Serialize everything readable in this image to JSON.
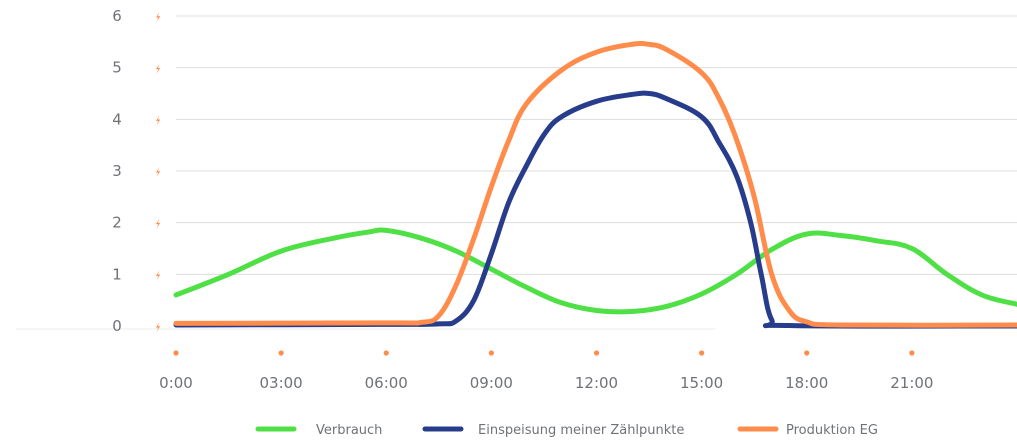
{
  "chart_data": {
    "type": "line",
    "title": "",
    "xlabel": "",
    "ylabel": "",
    "ylim": [
      0,
      6
    ],
    "xlim": [
      0,
      24
    ],
    "grid": true,
    "legend_position": "bottom",
    "y_ticks": [
      "0",
      "1",
      "2",
      "3",
      "4",
      "5",
      "6"
    ],
    "x_ticks": [
      "0:00",
      "03:00",
      "06:00",
      "09:00",
      "12:00",
      "15:00",
      "18:00",
      "21:00"
    ],
    "x_tick_hours": [
      0,
      3,
      6,
      9,
      12,
      15,
      18,
      21
    ],
    "y_marker_color": "#ff8c4b",
    "y_marker_icon": "lightning-bolt-icon",
    "x_marker_icon": "dot-icon",
    "series": [
      {
        "name": "Verbrauch",
        "color": "#4fe046",
        "points": [
          [
            0,
            0.6
          ],
          [
            1.5,
            1.0
          ],
          [
            3,
            1.45
          ],
          [
            4.5,
            1.7
          ],
          [
            5.5,
            1.82
          ],
          [
            6,
            1.85
          ],
          [
            7,
            1.7
          ],
          [
            8,
            1.45
          ],
          [
            9,
            1.1
          ],
          [
            10,
            0.75
          ],
          [
            11,
            0.45
          ],
          [
            12,
            0.3
          ],
          [
            13,
            0.28
          ],
          [
            14,
            0.38
          ],
          [
            15,
            0.62
          ],
          [
            16,
            1.0
          ],
          [
            17,
            1.48
          ],
          [
            18,
            1.78
          ],
          [
            19,
            1.75
          ],
          [
            20,
            1.65
          ],
          [
            21,
            1.5
          ],
          [
            22,
            1.0
          ],
          [
            23,
            0.6
          ],
          [
            24,
            0.42
          ]
        ]
      },
      {
        "name": "Einspeisung meiner Zählpunkte",
        "color": "#283c8c",
        "points": [
          [
            0,
            0.02
          ],
          [
            6,
            0.03
          ],
          [
            7.5,
            0.04
          ],
          [
            8,
            0.1
          ],
          [
            8.5,
            0.5
          ],
          [
            9,
            1.4
          ],
          [
            9.5,
            2.4
          ],
          [
            10,
            3.1
          ],
          [
            10.5,
            3.7
          ],
          [
            11,
            4.05
          ],
          [
            12,
            4.35
          ],
          [
            13,
            4.48
          ],
          [
            13.5,
            4.5
          ],
          [
            14,
            4.4
          ],
          [
            15,
            4.05
          ],
          [
            15.5,
            3.55
          ],
          [
            16,
            2.9
          ],
          [
            16.4,
            2.0
          ],
          [
            16.7,
            1.0
          ],
          [
            17,
            0.12
          ],
          [
            17.5,
            0.01
          ],
          [
            24,
            0.0
          ]
        ]
      },
      {
        "name": "Produktion EG",
        "color": "#ff8c4b",
        "points": [
          [
            0,
            0.05
          ],
          [
            6,
            0.06
          ],
          [
            7,
            0.07
          ],
          [
            7.5,
            0.2
          ],
          [
            8,
            0.8
          ],
          [
            8.5,
            1.7
          ],
          [
            9,
            2.7
          ],
          [
            9.5,
            3.6
          ],
          [
            10,
            4.3
          ],
          [
            11,
            4.95
          ],
          [
            12,
            5.3
          ],
          [
            13,
            5.45
          ],
          [
            13.5,
            5.45
          ],
          [
            14,
            5.35
          ],
          [
            15,
            4.9
          ],
          [
            15.5,
            4.4
          ],
          [
            16,
            3.6
          ],
          [
            16.5,
            2.5
          ],
          [
            17,
            1.0
          ],
          [
            17.5,
            0.3
          ],
          [
            18,
            0.08
          ],
          [
            19,
            0.02
          ],
          [
            24,
            0.02
          ]
        ]
      }
    ]
  }
}
